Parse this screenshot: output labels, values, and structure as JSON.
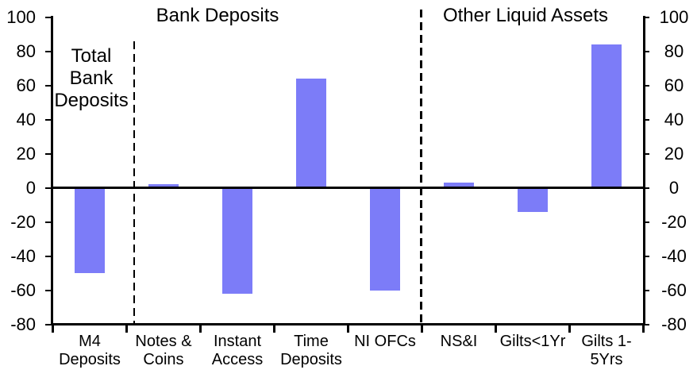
{
  "chart_data": {
    "type": "bar",
    "title": "",
    "section_titles": {
      "left_annotation": "Total\nBank\nDeposits",
      "middle": "Bank Deposits",
      "right": "Other Liquid Assets"
    },
    "categories": [
      "M4 Deposits",
      "Notes & Coins",
      "Instant Access",
      "Time Deposits",
      "NI OFCs",
      "NS&I",
      "Gilts<1Yr",
      "Gilts 1-5Yrs"
    ],
    "category_tick_lines": [
      [
        "M4",
        "Deposits"
      ],
      [
        "Notes &",
        "Coins"
      ],
      [
        "Instant",
        "Access"
      ],
      [
        "Time",
        "Deposits"
      ],
      [
        "NI OFCs"
      ],
      [
        "NS&I"
      ],
      [
        "Gilts<1Yr"
      ],
      [
        "Gilts 1-",
        "5Yrs"
      ]
    ],
    "values": [
      -50,
      2,
      -62,
      64,
      -60,
      3,
      -14,
      84
    ],
    "groups": [
      {
        "label": "Total Bank Deposits",
        "category_indexes": [
          0
        ]
      },
      {
        "label": "Bank Deposits",
        "category_indexes": [
          1,
          2,
          3,
          4
        ]
      },
      {
        "label": "Other Liquid Assets",
        "category_indexes": [
          5,
          6,
          7
        ]
      }
    ],
    "separators_after_category_index": [
      0,
      4
    ],
    "ylim": [
      -80,
      100
    ],
    "yticks": [
      100,
      80,
      60,
      40,
      20,
      0,
      -20,
      -40,
      -60,
      -80
    ],
    "y_axis": "both-sides",
    "grid": false,
    "legend": "none",
    "colors": {
      "bar": "#7C7CF8",
      "axis": "#000000",
      "background": "#FFFFFF"
    }
  }
}
